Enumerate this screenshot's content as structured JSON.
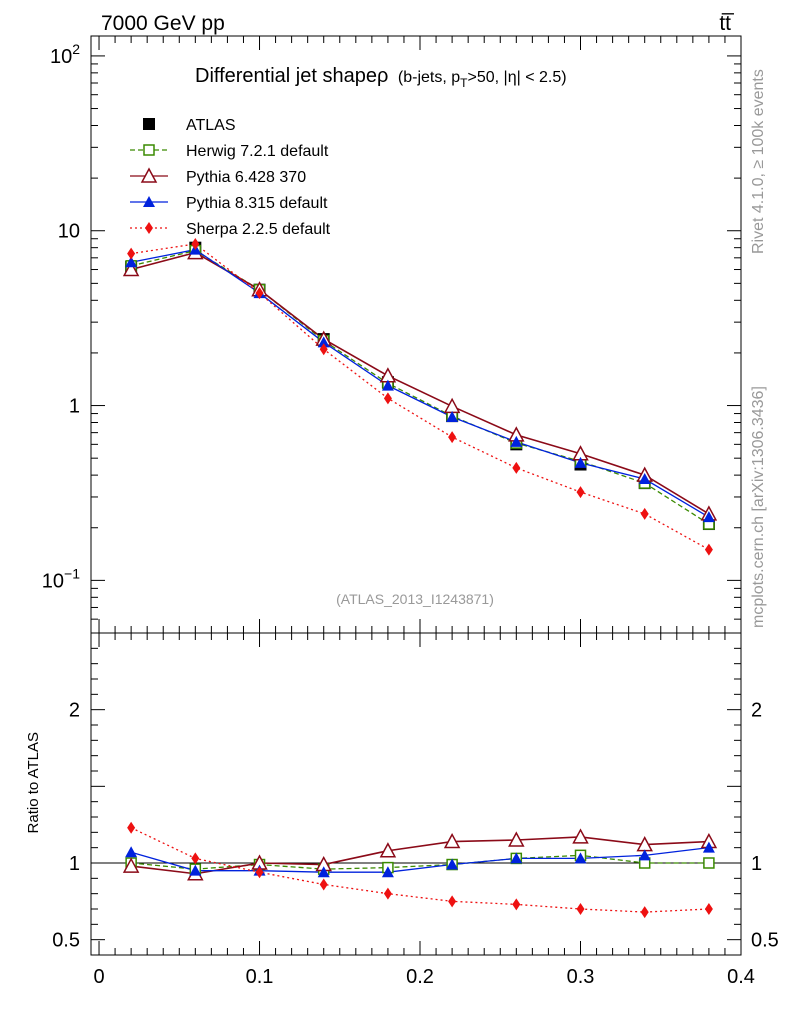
{
  "header": {
    "left": "7000 GeV pp",
    "right": "tt̅"
  },
  "side_text": {
    "rivet": "Rivet 4.1.0, ≥ 100k events",
    "mcplots": "mcplots.cern.ch [arXiv:1306.3436]"
  },
  "colors": {
    "ATLAS": "#000000",
    "Herwig": "#3a8a00",
    "Pythia6": "#8b0a18",
    "Pythia8": "#0022dd",
    "Sherpa": "#ee1111"
  },
  "chart_data": [
    {
      "type": "line",
      "title": "Differential jet shapeρ",
      "title_suffix": "(b-jets, pT>50, |η| < 2.5)",
      "title_parts": {
        "b": "(b-jets, p",
        "sub": "T",
        "c": ">50, |η| < 2.5)"
      },
      "watermark": "(ATLAS_2013_I1243871)",
      "yscale": "log",
      "xlim": [
        -0.005,
        0.4
      ],
      "ylim": [
        0.05,
        130
      ],
      "yticks": [
        {
          "value": 100,
          "base": "10",
          "exp": "2"
        },
        {
          "value": 10,
          "label": "10"
        },
        {
          "value": 1,
          "label": "1"
        },
        {
          "value": 0.1,
          "base": "10",
          "exp": "−1"
        }
      ],
      "x": [
        0.02,
        0.06,
        0.1,
        0.14,
        0.18,
        0.22,
        0.26,
        0.3,
        0.34,
        0.38
      ],
      "series": [
        {
          "name": "ATLAS",
          "key": "ATLAS",
          "marker": "square-filled",
          "line": "none",
          "values": [
            6.2,
            8.0,
            4.6,
            2.4,
            1.36,
            0.87,
            0.6,
            0.46,
            0.36,
            0.21
          ]
        },
        {
          "name": "Herwig 7.2.1 default",
          "key": "Herwig",
          "marker": "square-open",
          "line": "dashed",
          "values": [
            6.3,
            7.7,
            4.6,
            2.35,
            1.34,
            0.87,
            0.61,
            0.48,
            0.36,
            0.21
          ]
        },
        {
          "name": "Pythia 6.428 370",
          "key": "Pythia6",
          "marker": "triangle-open",
          "line": "solid",
          "values": [
            6.0,
            7.5,
            4.6,
            2.4,
            1.48,
            0.99,
            0.68,
            0.53,
            0.4,
            0.24
          ]
        },
        {
          "name": "Pythia 8.315 default",
          "key": "Pythia8",
          "marker": "triangle-filled",
          "line": "solid",
          "values": [
            6.6,
            7.8,
            4.4,
            2.3,
            1.3,
            0.86,
            0.62,
            0.47,
            0.38,
            0.23
          ]
        },
        {
          "name": "Sherpa 2.2.5 default",
          "key": "Sherpa",
          "marker": "diamond-filled",
          "line": "dotted",
          "values": [
            7.4,
            8.4,
            4.4,
            2.1,
            1.1,
            0.66,
            0.44,
            0.32,
            0.24,
            0.15
          ]
        }
      ]
    },
    {
      "type": "line",
      "ylabel": "Ratio to ATLAS",
      "xlim": [
        -0.005,
        0.4
      ],
      "ylim": [
        0.4,
        2.5
      ],
      "yticks": [
        {
          "value": 2,
          "label": "2"
        },
        {
          "value": 1,
          "label": "1"
        },
        {
          "value": 0.5,
          "label": "0.5"
        }
      ],
      "xticks": [
        {
          "value": 0,
          "label": "0"
        },
        {
          "value": 0.1,
          "label": "0.1"
        },
        {
          "value": 0.2,
          "label": "0.2"
        },
        {
          "value": 0.3,
          "label": "0.3"
        },
        {
          "value": 0.4,
          "label": "0.4"
        }
      ],
      "x": [
        0.02,
        0.06,
        0.1,
        0.14,
        0.18,
        0.22,
        0.26,
        0.3,
        0.34,
        0.38
      ],
      "series": [
        {
          "name": "Herwig 7.2.1 default",
          "key": "Herwig",
          "marker": "square-open",
          "line": "dashed",
          "values": [
            1.0,
            0.96,
            0.99,
            0.96,
            0.97,
            0.99,
            1.03,
            1.05,
            1.0,
            1.0
          ]
        },
        {
          "name": "Pythia 6.428 370",
          "key": "Pythia6",
          "marker": "triangle-open",
          "line": "solid",
          "values": [
            0.98,
            0.93,
            1.0,
            0.99,
            1.08,
            1.14,
            1.15,
            1.17,
            1.12,
            1.14
          ]
        },
        {
          "name": "Pythia 8.315 default",
          "key": "Pythia8",
          "marker": "triangle-filled",
          "line": "solid",
          "values": [
            1.07,
            0.95,
            0.95,
            0.94,
            0.94,
            0.99,
            1.03,
            1.03,
            1.05,
            1.1
          ]
        },
        {
          "name": "Sherpa 2.2.5 default",
          "key": "Sherpa",
          "marker": "diamond-filled",
          "line": "dotted",
          "values": [
            1.23,
            1.03,
            0.94,
            0.86,
            0.8,
            0.75,
            0.73,
            0.7,
            0.68,
            0.7
          ]
        }
      ]
    }
  ]
}
